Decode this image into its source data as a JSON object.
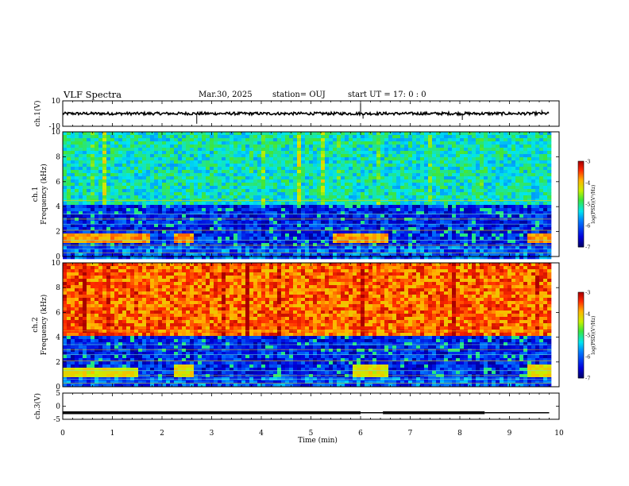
{
  "header": {
    "title": "VLF Spectra",
    "date": "Mar.30, 2025",
    "station": "station= OUJ",
    "start": "start  UT =   17: 0  : 0"
  },
  "chart_data": {
    "type": "heatmap",
    "title": "VLF Spectra",
    "xlabel": "Time  (min)",
    "x_ticks": [
      "0",
      "1",
      "2",
      "3",
      "4",
      "5",
      "6",
      "7",
      "8",
      "9",
      "10"
    ],
    "xlim": [
      0,
      10
    ],
    "panels": [
      {
        "id": "waveform_ch1",
        "type": "line",
        "ylabel": "ch.1(V)",
        "y_ticks": [
          "10",
          "-10"
        ],
        "ylim": [
          -10,
          10
        ],
        "baseline": 0,
        "data_end": 9.8,
        "spikes": [
          {
            "x": 2.7,
            "y": -8
          },
          {
            "x": 6.0,
            "y": 8
          },
          {
            "x": 6.05,
            "y": -4
          },
          {
            "x": 8.05,
            "y": -5
          },
          {
            "x": 9.65,
            "y": 3
          }
        ]
      },
      {
        "id": "spectrogram_ch1",
        "type": "heatmap",
        "ylabel_1": "ch.1",
        "ylabel_2": "Frequency  (kHz)",
        "y_ticks": [
          "0",
          "2",
          "4",
          "6",
          "8",
          "10"
        ],
        "ylim": [
          0,
          10
        ],
        "colorbar": {
          "min": -7,
          "max": -3,
          "ticks": [
            "-3",
            "-4",
            "-5",
            "-6",
            "-7"
          ],
          "label": "log(PSD)(V²/Hz)"
        },
        "level": -5.2,
        "features": [
          {
            "x0": 0.0,
            "x1": 1.7,
            "f0": 1.2,
            "f1": 1.9,
            "level": -3.8
          },
          {
            "x0": 2.2,
            "x1": 2.6,
            "f0": 1.2,
            "f1": 1.9,
            "level": -3.8
          },
          {
            "x0": 5.4,
            "x1": 6.5,
            "f0": 1.2,
            "f1": 1.9,
            "level": -3.8
          },
          {
            "x0": 9.3,
            "x1": 9.8,
            "f0": 1.2,
            "f1": 1.9,
            "level": -3.8
          }
        ]
      },
      {
        "id": "spectrogram_ch2",
        "type": "heatmap",
        "ylabel_1": "ch.2",
        "ylabel_2": "Frequency  (kHz)",
        "y_ticks": [
          "0",
          "2",
          "4",
          "6",
          "8",
          "10"
        ],
        "ylim": [
          0,
          10
        ],
        "colorbar": {
          "min": -7,
          "max": -3,
          "ticks": [
            "-3",
            "-4",
            "-5",
            "-6",
            "-7"
          ],
          "label": "log(PSD)(V²/Hz)"
        },
        "level": -3.6,
        "features": [
          {
            "x0": 0.0,
            "x1": 1.5,
            "f0": 0.9,
            "f1": 1.6,
            "level": -4.2
          },
          {
            "x0": 2.2,
            "x1": 2.6,
            "f0": 1.0,
            "f1": 1.8,
            "level": -4.2
          },
          {
            "x0": 5.8,
            "x1": 6.5,
            "f0": 1.0,
            "f1": 1.8,
            "level": -4.2
          },
          {
            "x0": 9.3,
            "x1": 9.8,
            "f0": 1.0,
            "f1": 1.8,
            "level": -4.2
          }
        ]
      },
      {
        "id": "waveform_ch3",
        "type": "line",
        "ylabel": "ch.3(V)",
        "y_ticks": [
          "5",
          "0",
          "-5"
        ],
        "ylim": [
          -5,
          5
        ],
        "segments": [
          {
            "x0": 0.0,
            "x1": 6.0,
            "y": -2.5
          },
          {
            "x0": 6.45,
            "x1": 8.5,
            "y": -2.5
          }
        ],
        "thin_segments": [
          {
            "x0": 6.0,
            "x1": 6.45,
            "y": -2.5
          },
          {
            "x0": 8.5,
            "x1": 9.8,
            "y": -2.5
          }
        ]
      }
    ]
  }
}
